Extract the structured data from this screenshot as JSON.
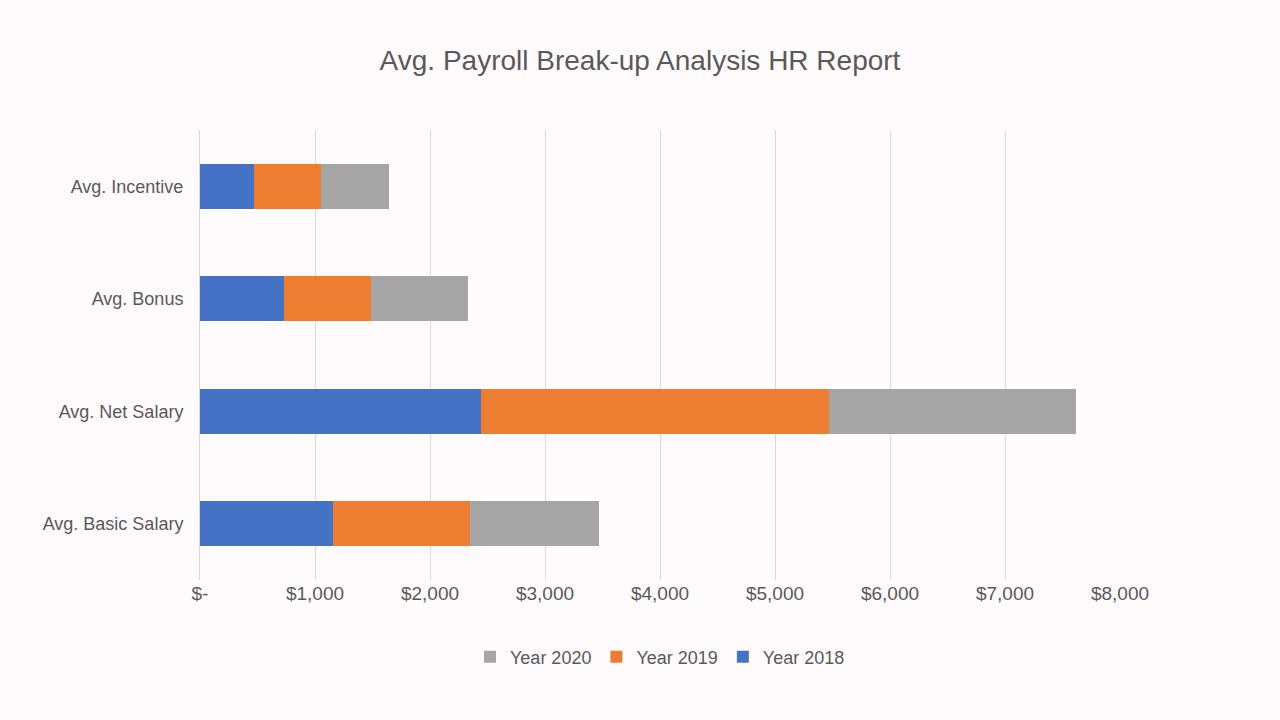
{
  "chart_data": {
    "type": "bar",
    "title": "Avg. Payroll Break-up Analysis HR Report",
    "orientation": "horizontal",
    "stacked": true,
    "grid": true,
    "legend": "bottom",
    "categories": [
      "Avg. Basic Salary",
      "Avg. Net Salary",
      "Avg. Bonus",
      "Avg. Incentive"
    ],
    "series": [
      {
        "name": "Year 2018",
        "color": "#4472c4",
        "values": [
          1160,
          2440,
          730,
          470
        ]
      },
      {
        "name": "Year 2019",
        "color": "#ed7d31",
        "values": [
          1190,
          3030,
          760,
          580
        ]
      },
      {
        "name": "Year 2020",
        "color": "#a5a5a5",
        "values": [
          1120,
          2150,
          840,
          590
        ]
      }
    ],
    "xlim": [
      0,
      8000
    ],
    "xticks": [
      {
        "value": 0,
        "label": "$-"
      },
      {
        "value": 1000,
        "label": "$1,000"
      },
      {
        "value": 2000,
        "label": "$2,000"
      },
      {
        "value": 3000,
        "label": "$3,000"
      },
      {
        "value": 4000,
        "label": "$4,000"
      },
      {
        "value": 5000,
        "label": "$5,000"
      },
      {
        "value": 6000,
        "label": "$6,000"
      },
      {
        "value": 7000,
        "label": "$7,000"
      },
      {
        "value": 8000,
        "label": "$8,000"
      }
    ]
  }
}
